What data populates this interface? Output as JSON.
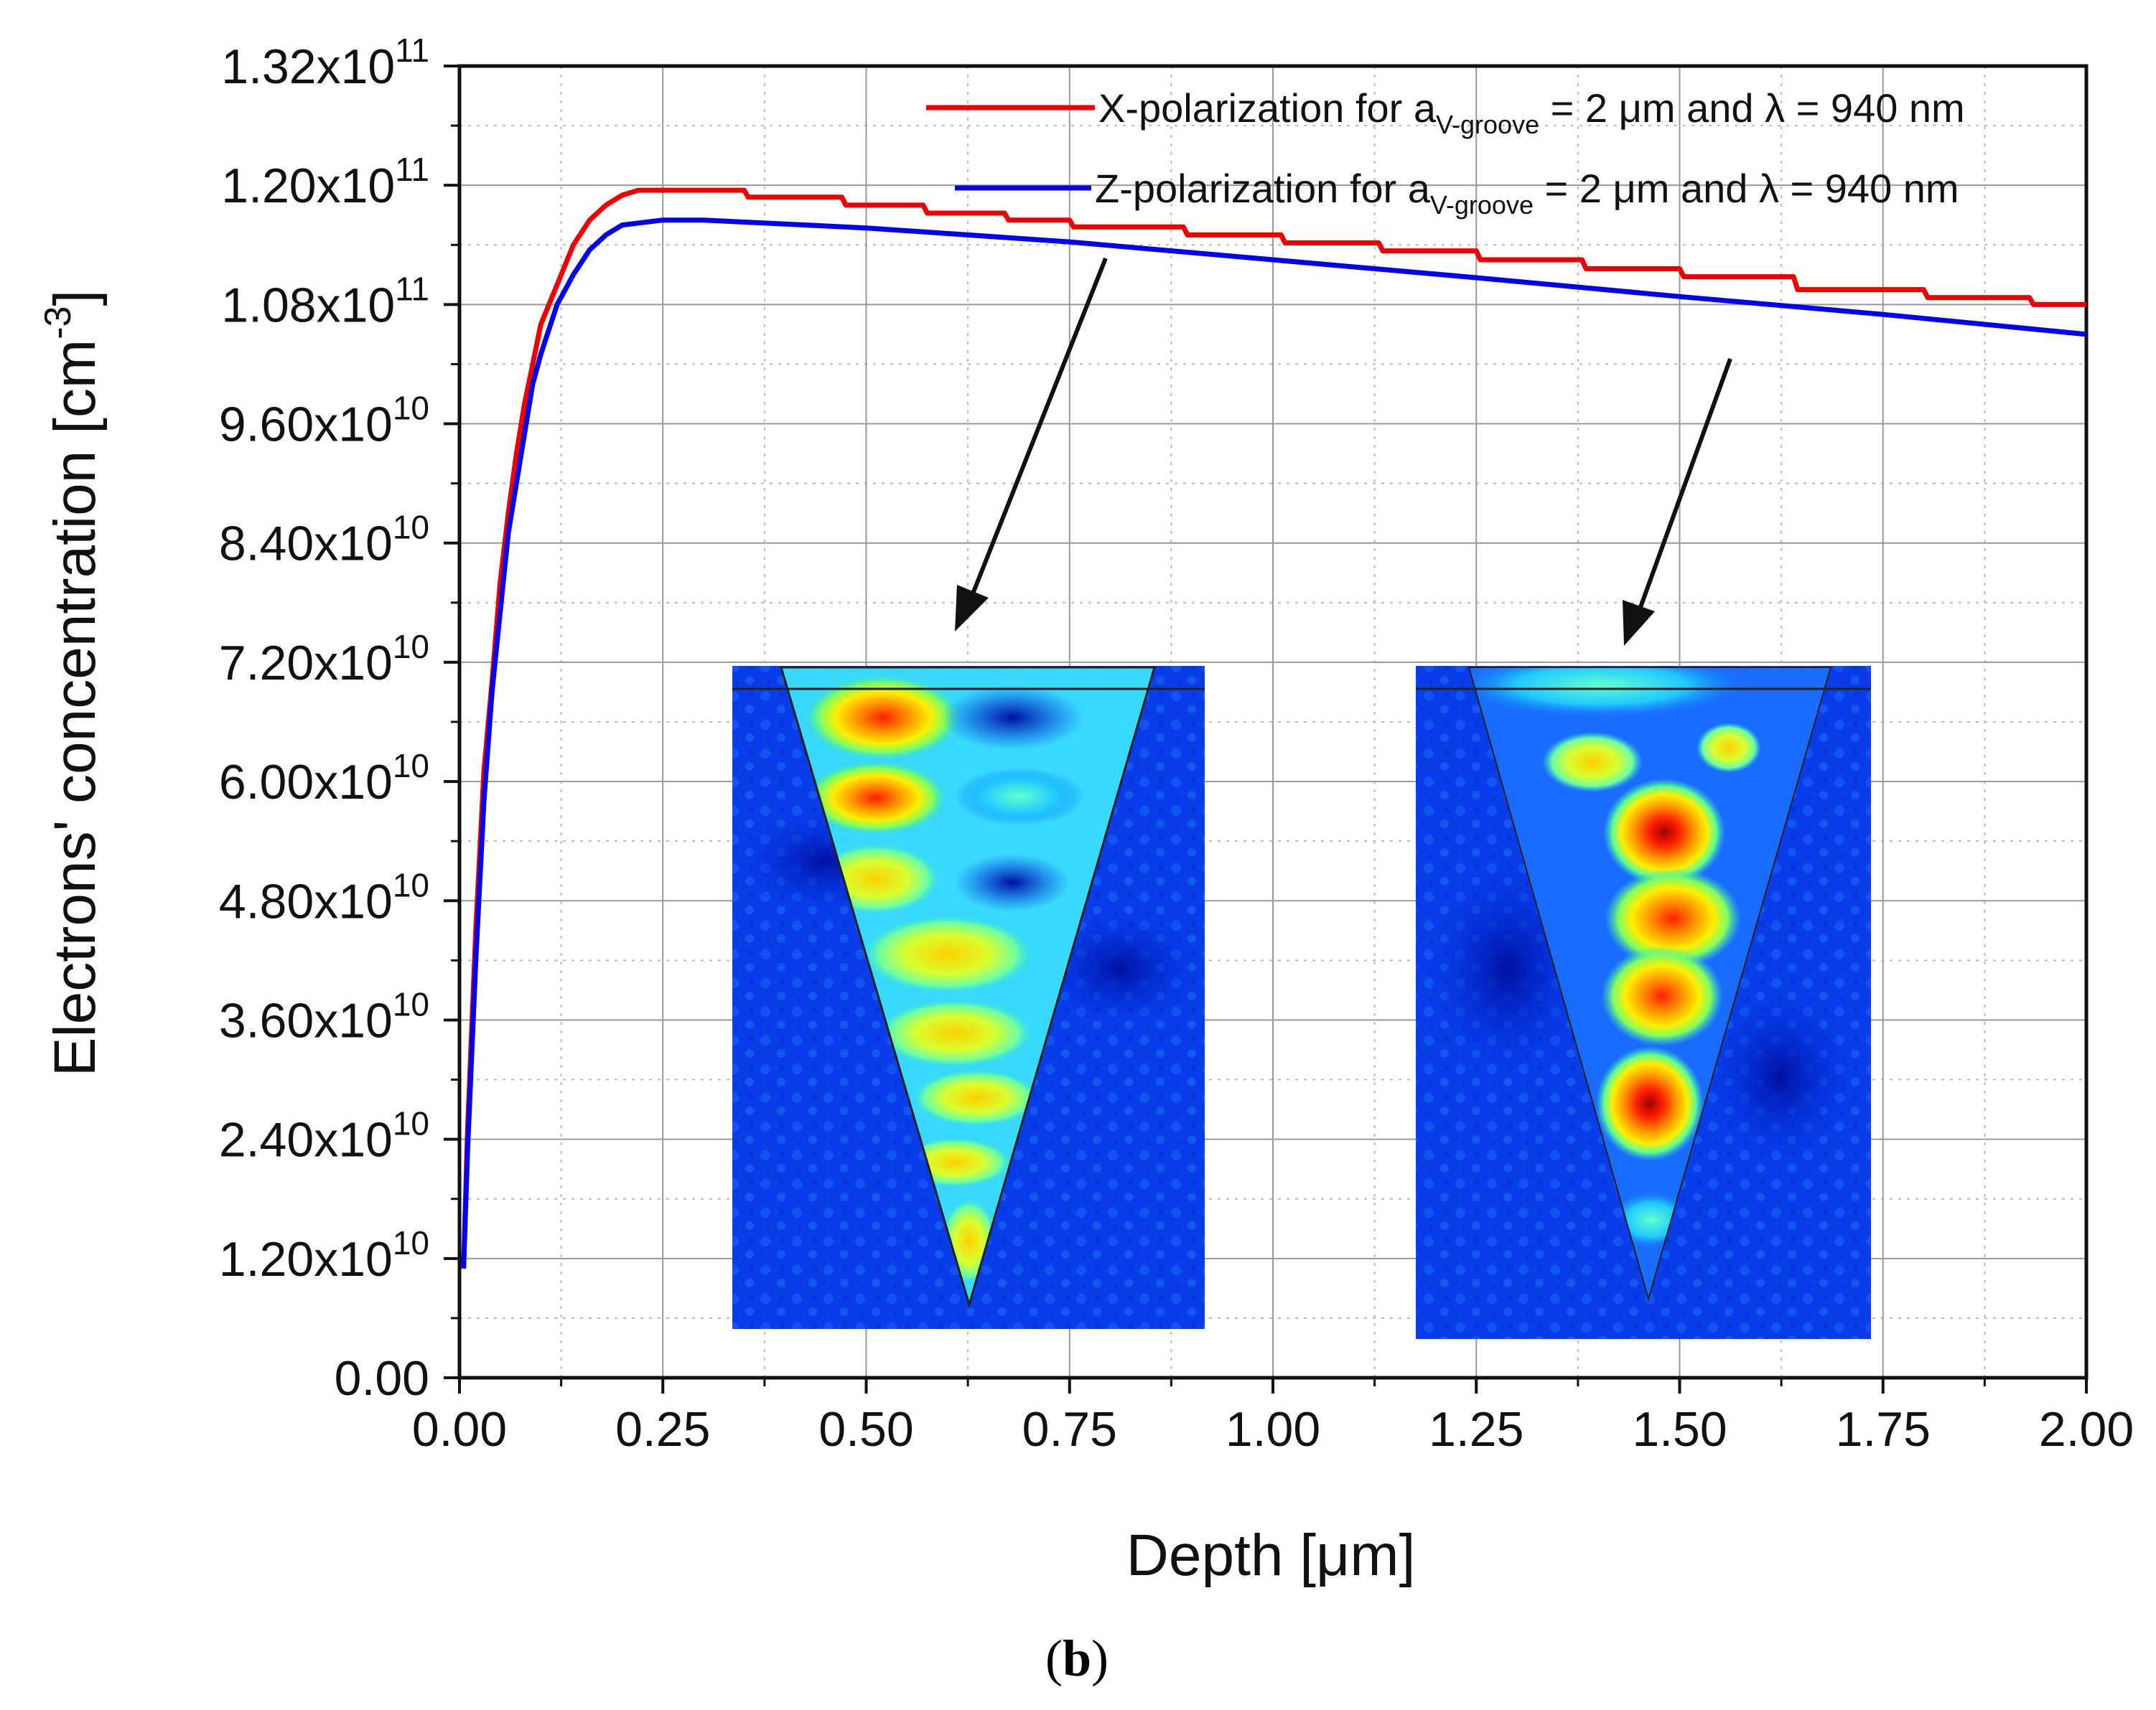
{
  "chart_data": {
    "type": "line",
    "xlabel": "Depth [μm]",
    "ylabel_main": "Electrons' concentration [cm",
    "ylabel_sup": "-3",
    "ylabel_close": "]",
    "xlim": [
      0,
      2.0
    ],
    "ylim": [
      0,
      132000000000.0
    ],
    "grid": true,
    "x_ticks": [
      0,
      0.25,
      0.5,
      0.75,
      1.0,
      1.25,
      1.5,
      1.75,
      2.0
    ],
    "x_tick_labels": [
      "0.00",
      "0.25",
      "0.50",
      "0.75",
      "1.00",
      "1.25",
      "1.50",
      "1.75",
      "2.00"
    ],
    "y_ticks": [
      0,
      12000000000.0,
      24000000000.0,
      36000000000.0,
      48000000000.0,
      60000000000.0,
      72000000000.0,
      84000000000.0,
      96000000000.0,
      108000000000.0,
      120000000000.0,
      132000000000.0
    ],
    "y_tick_labels": [
      {
        "mantissa": "0.00",
        "exp": ""
      },
      {
        "mantissa": "1.20x10",
        "exp": "10"
      },
      {
        "mantissa": "2.40x10",
        "exp": "10"
      },
      {
        "mantissa": "3.60x10",
        "exp": "10"
      },
      {
        "mantissa": "4.80x10",
        "exp": "10"
      },
      {
        "mantissa": "6.00x10",
        "exp": "10"
      },
      {
        "mantissa": "7.20x10",
        "exp": "10"
      },
      {
        "mantissa": "8.40x10",
        "exp": "10"
      },
      {
        "mantissa": "9.60x10",
        "exp": "10"
      },
      {
        "mantissa": "1.08x10",
        "exp": "11"
      },
      {
        "mantissa": "1.20x10",
        "exp": "11"
      },
      {
        "mantissa": "1.32x10",
        "exp": "11"
      }
    ],
    "series": [
      {
        "name": "X-polarization",
        "color": "#ee0000",
        "legend": {
          "pre": "X-polarization for a",
          "sub": "V-groove",
          "post": " = 2 μm and λ = 940 nm"
        },
        "x": [
          0.005,
          0.01,
          0.02,
          0.03,
          0.04,
          0.05,
          0.06,
          0.07,
          0.08,
          0.09,
          0.1,
          0.12,
          0.14,
          0.16,
          0.18,
          0.2,
          0.22,
          0.35,
          0.355,
          0.47,
          0.475,
          0.57,
          0.575,
          0.67,
          0.675,
          0.75,
          0.755,
          0.89,
          0.895,
          1.01,
          1.015,
          1.13,
          1.135,
          1.25,
          1.255,
          1.38,
          1.385,
          1.5,
          1.505,
          1.64,
          1.645,
          1.8,
          1.805,
          1.93,
          1.935,
          2.0
        ],
        "y": [
          11000000000.0,
          25000000000.0,
          45000000000.0,
          61000000000.0,
          70000000000.0,
          80000000000.0,
          87000000000.0,
          93000000000.0,
          98000000000.0,
          102000000000.0,
          106000000000.0,
          110000000000.0,
          114000000000.0,
          116500000000.0,
          118000000000.0,
          119000000000.0,
          119500000000.0,
          119500000000.0,
          118800000000.0,
          118800000000.0,
          118000000000.0,
          118000000000.0,
          117200000000.0,
          117200000000.0,
          116500000000.0,
          116500000000.0,
          115800000000.0,
          115800000000.0,
          115000000000.0,
          115000000000.0,
          114200000000.0,
          114200000000.0,
          113400000000.0,
          113400000000.0,
          112500000000.0,
          112500000000.0,
          111600000000.0,
          111600000000.0,
          110800000000.0,
          110800000000.0,
          109500000000.0,
          109500000000.0,
          108700000000.0,
          108700000000.0,
          108000000000.0,
          108000000000.0
        ]
      },
      {
        "name": "Z-polarization",
        "color": "#0000ee",
        "legend": {
          "pre": "Z-polarization for a",
          "sub": "V-groove",
          "post": " = 2 μm and λ = 940 nm"
        },
        "x": [
          0.005,
          0.01,
          0.02,
          0.03,
          0.04,
          0.05,
          0.06,
          0.07,
          0.08,
          0.09,
          0.1,
          0.12,
          0.14,
          0.16,
          0.18,
          0.2,
          0.25,
          0.3,
          0.5,
          0.75,
          1.0,
          1.25,
          1.5,
          1.75,
          2.0
        ],
        "y": [
          11000000000.0,
          23000000000.0,
          42000000000.0,
          58000000000.0,
          69000000000.0,
          77000000000.0,
          85000000000.0,
          90000000000.0,
          95000000000.0,
          100000000000.0,
          103000000000.0,
          108000000000.0,
          111000000000.0,
          113500000000.0,
          115000000000.0,
          116000000000.0,
          116500000000.0,
          116500000000.0,
          115700000000.0,
          114300000000.0,
          112500000000.0,
          110700000000.0,
          108800000000.0,
          107000000000.0,
          105000000000.0
        ]
      }
    ],
    "insets": [
      {
        "name": "x-polarization-field-map"
      },
      {
        "name": "z-polarization-field-map"
      }
    ],
    "caption_open": "(",
    "caption_letter": "b",
    "caption_close": ")"
  }
}
